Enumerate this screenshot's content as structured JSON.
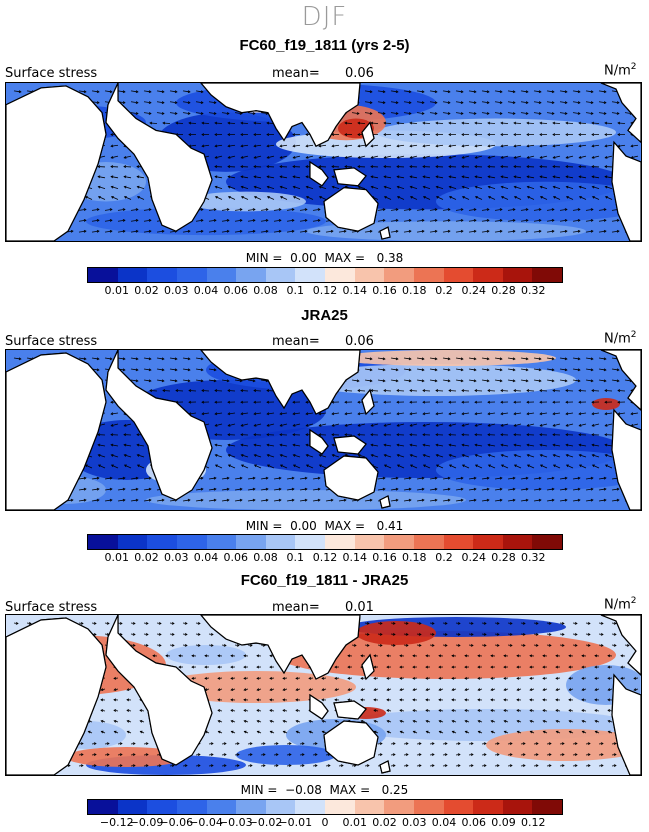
{
  "season": "DJF",
  "variable_label": "Surface stress",
  "units": "N/m",
  "units_sup": "2",
  "mean_label": "mean=",
  "min_label": "MIN =",
  "max_label": "MAX =",
  "colors": {
    "abs": [
      "#08109a",
      "#0b34c8",
      "#1c4ee0",
      "#2e64e8",
      "#4a80ec",
      "#78a4f0",
      "#a8c6f6",
      "#d2e2fa",
      "#fce8dc",
      "#f8c4ac",
      "#f29c7e",
      "#ec7454",
      "#e44c30",
      "#cc2a18",
      "#a8140c",
      "#800a06"
    ],
    "diff": [
      "#08109a",
      "#0b34c8",
      "#1c4ee0",
      "#2e64e8",
      "#4a80ec",
      "#78a4f0",
      "#a8c6f6",
      "#d2e2fa",
      "#fce8dc",
      "#f8c4ac",
      "#f29c7e",
      "#ec7454",
      "#e44c30",
      "#cc2a18",
      "#a8140c",
      "#800a06"
    ]
  },
  "chart_data": [
    {
      "type": "heatmap",
      "title": "FC60_f19_1811 (yrs 2-5)",
      "mean": "0.06",
      "min": "0.00",
      "max": "0.38",
      "palette": "abs",
      "colorbar_ticks": [
        "0.01",
        "0.02",
        "0.03",
        "0.04",
        "0.06",
        "0.08",
        "0.1",
        "0.12",
        "0.14",
        "0.16",
        "0.18",
        "0.2",
        "0.24",
        "0.28",
        "0.32"
      ],
      "field": "model"
    },
    {
      "type": "heatmap",
      "title": "JRA25",
      "mean": "0.06",
      "min": "0.00",
      "max": "0.41",
      "palette": "abs",
      "colorbar_ticks": [
        "0.01",
        "0.02",
        "0.03",
        "0.04",
        "0.06",
        "0.08",
        "0.1",
        "0.12",
        "0.14",
        "0.16",
        "0.18",
        "0.2",
        "0.24",
        "0.28",
        "0.32"
      ],
      "field": "obs"
    },
    {
      "type": "heatmap",
      "title": "FC60_f19_1811 - JRA25",
      "mean": "0.01",
      "min": "−0.08",
      "max": "0.25",
      "palette": "diff",
      "colorbar_ticks": [
        "−0.12",
        "−0.09",
        "−0.06",
        "−0.04",
        "−0.03",
        "−0.02",
        "−0.01",
        "0",
        "0.01",
        "0.02",
        "0.03",
        "0.04",
        "0.06",
        "0.09",
        "0.12"
      ],
      "field": "diff"
    }
  ]
}
